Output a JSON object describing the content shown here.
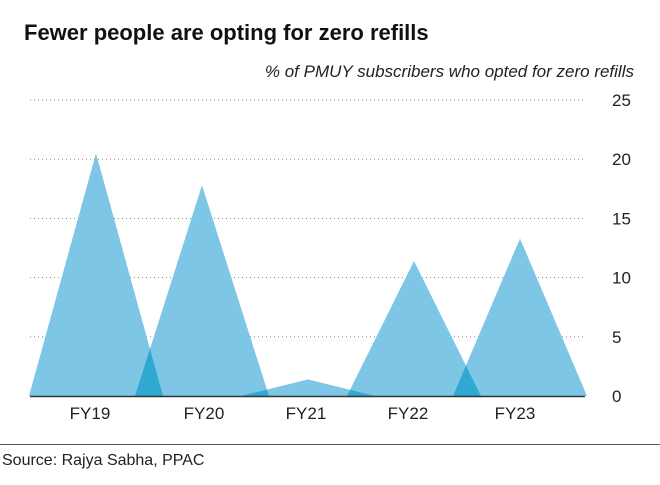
{
  "chart_data": {
    "type": "area",
    "title": "Fewer people are opting for zero refills",
    "subtitle": "% of PMUY subscribers who  opted for zero refills",
    "categories": [
      "FY19",
      "FY20",
      "FY21",
      "FY22",
      "FY23"
    ],
    "values": [
      20.5,
      17.8,
      1.4,
      11.4,
      13.3
    ],
    "ylim": [
      0,
      25
    ],
    "yticks": [
      "0",
      "5",
      "10",
      "15",
      "20",
      "25"
    ],
    "grid": true,
    "source": "Source: Rajya Sabha, PPAC",
    "colors": {
      "fill": "#7ec6e6",
      "overlap": "#2fa8d2",
      "axis": "#333333"
    }
  }
}
